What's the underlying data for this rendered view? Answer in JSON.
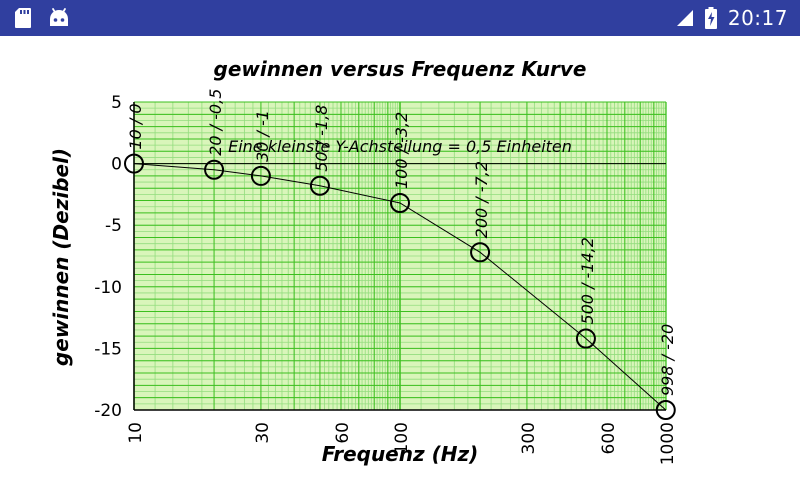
{
  "status_bar": {
    "time": "20:17",
    "icons": [
      "sd-card-icon",
      "android-icon",
      "signal-icon",
      "battery-charging-icon"
    ],
    "bar_color": "#303f9f"
  },
  "chart_data": {
    "type": "line",
    "title": "gewinnen versus Frequenz Kurve",
    "xlabel": "Frequenz (Hz)",
    "ylabel": "gewinnen (Dezibel)",
    "x_scale": "log",
    "xlim": [
      10,
      1000
    ],
    "ylim": [
      -20,
      5
    ],
    "x_ticks": [
      10,
      30,
      60,
      100,
      300,
      600,
      1000
    ],
    "x_tick_labels": [
      "10",
      "30",
      "60",
      "100",
      "300",
      "600",
      "1000"
    ],
    "y_ticks": [
      5,
      0,
      -5,
      -10,
      -15,
      -20
    ],
    "y_tick_labels": [
      "5",
      "0",
      "-5",
      "-10",
      "-15",
      "-20"
    ],
    "annotation": "Eine kleinste Y-Achsteilung = 0,5 Einheiten",
    "grid": true,
    "grid_color": "#3cbf1f",
    "grid_minor_color": "#93dd7e",
    "plot_background": "#d9f5ba",
    "line_color": "#000000",
    "points": [
      {
        "x": 10,
        "y": 0,
        "label": "10 / 0"
      },
      {
        "x": 20,
        "y": -0.5,
        "label": "20 / -0,5"
      },
      {
        "x": 30,
        "y": -1,
        "label": "30 / -1"
      },
      {
        "x": 50,
        "y": -1.8,
        "label": "50 / -1,8"
      },
      {
        "x": 100,
        "y": -3.2,
        "label": "100 / -3,2"
      },
      {
        "x": 200,
        "y": -7.2,
        "label": "200 / -7,2"
      },
      {
        "x": 500,
        "y": -14.2,
        "label": "500 / -14,2"
      },
      {
        "x": 998,
        "y": -20,
        "label": "998 / -20"
      }
    ]
  }
}
